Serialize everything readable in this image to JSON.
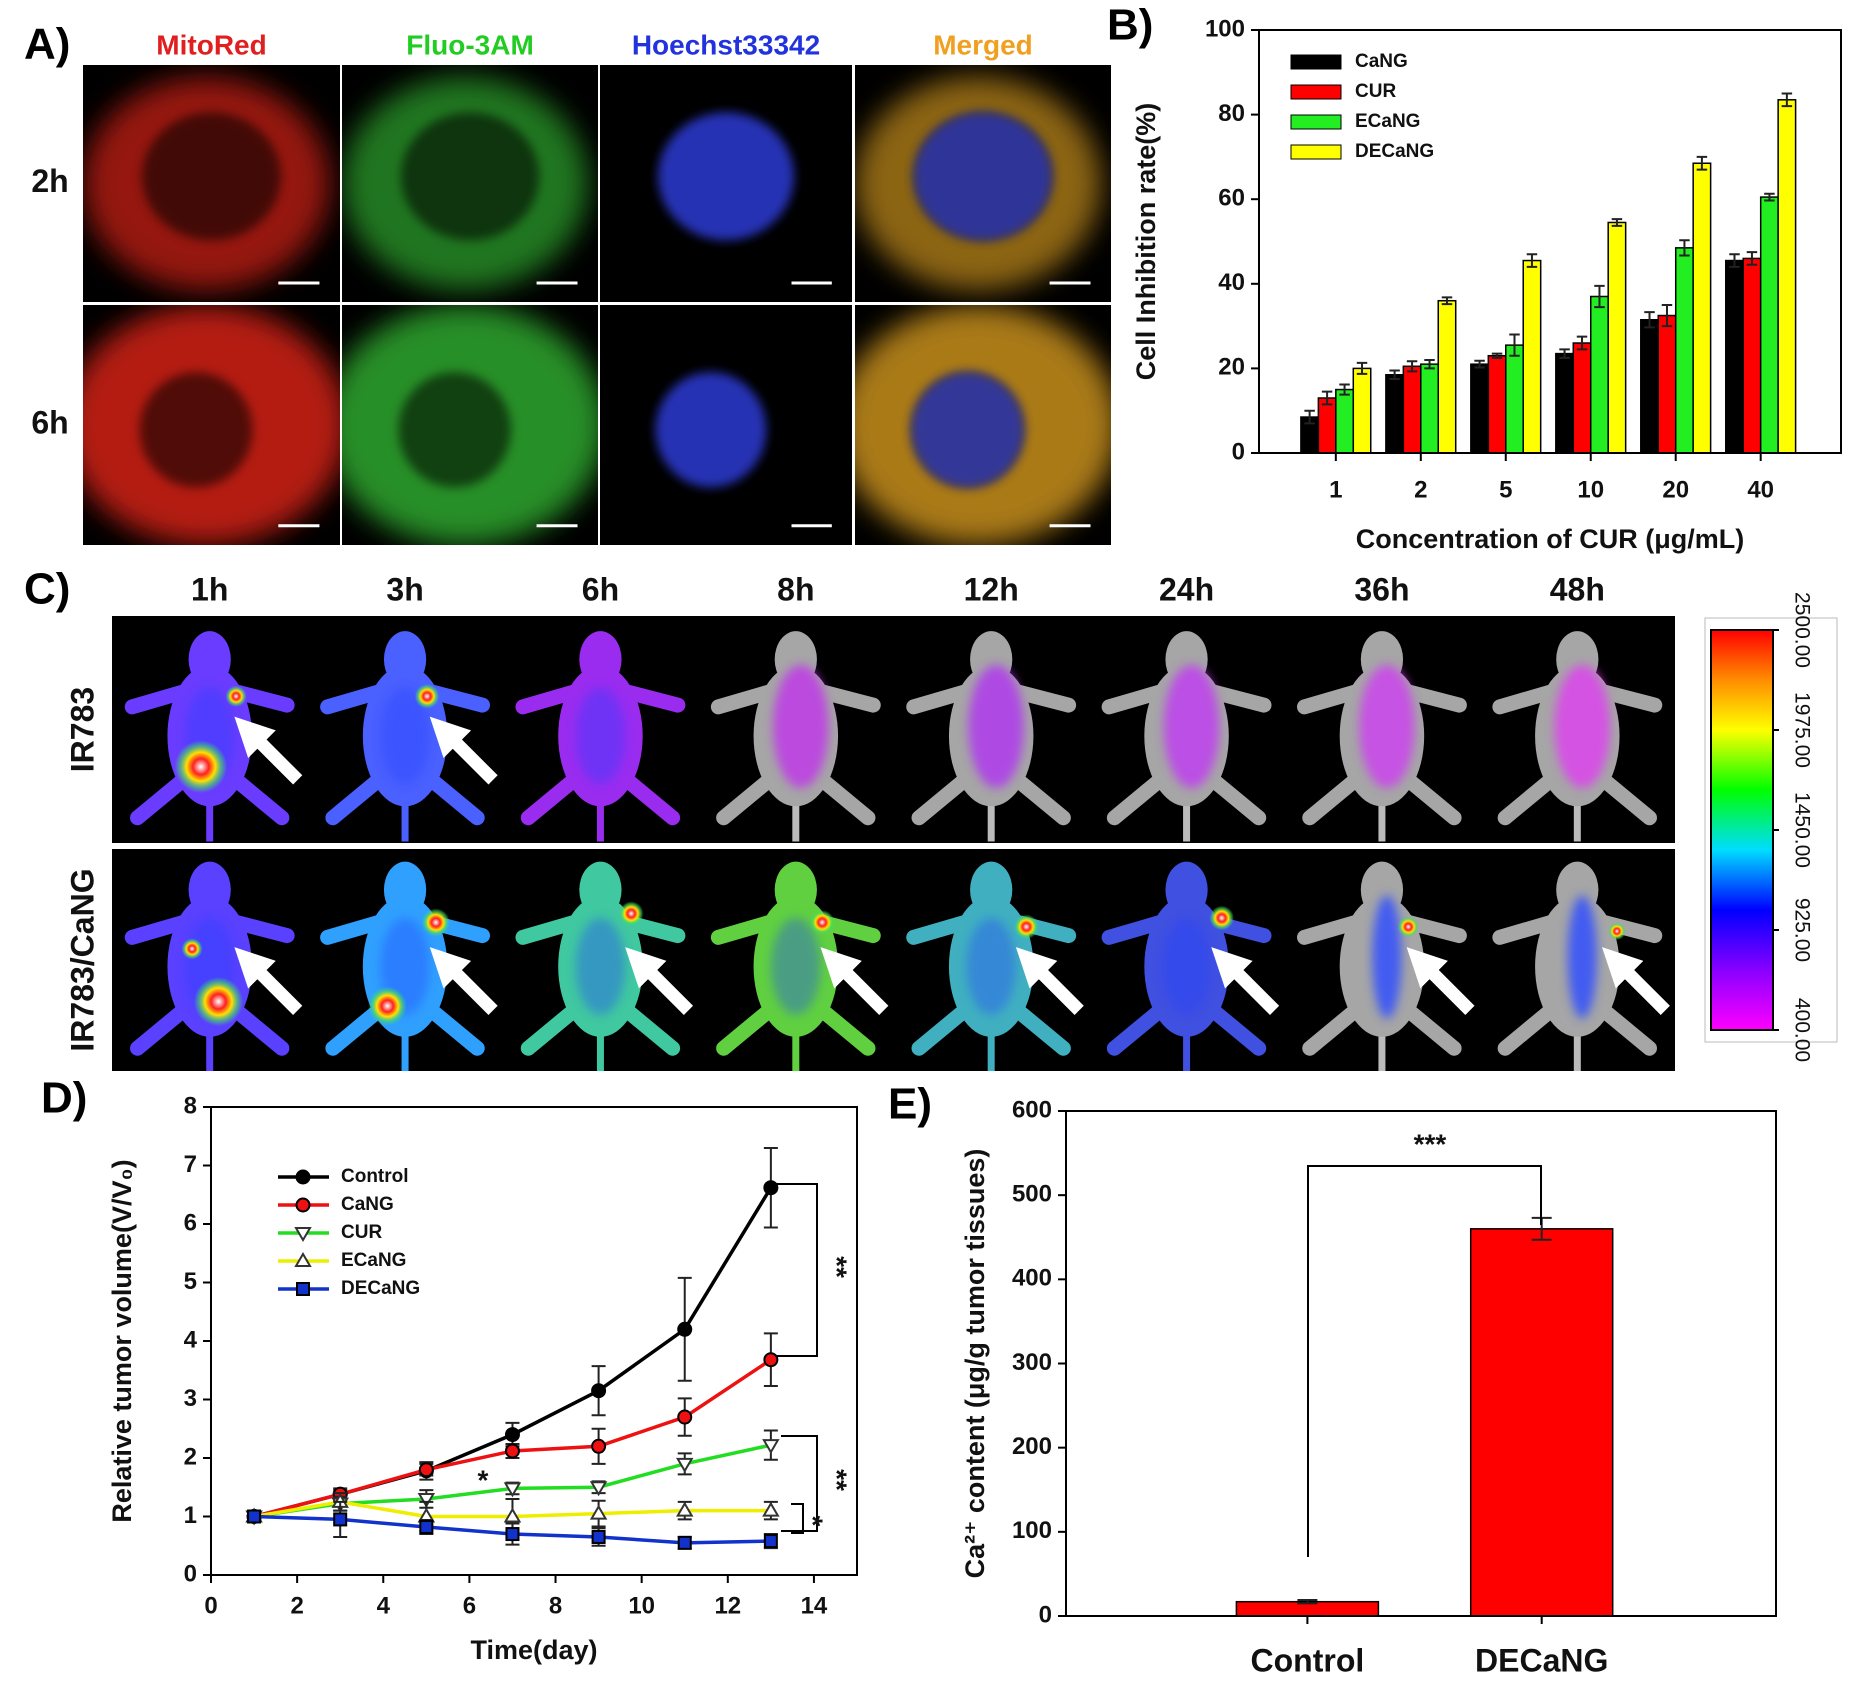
{
  "panel_labels": [
    "A)",
    "B)",
    "C)",
    "D)",
    "E)"
  ],
  "microscopy": {
    "channels": [
      "MitoRed",
      "Fluo-3AM",
      "Hoechst33342",
      "Merged"
    ],
    "rows": [
      "2h",
      "6h"
    ]
  },
  "imaging": {
    "times": [
      "1h",
      "3h",
      "6h",
      "8h",
      "12h",
      "24h",
      "36h",
      "48h"
    ],
    "rows": [
      "IR783",
      "IR783/CaNG"
    ],
    "colorbar": {
      "lim": [
        400,
        2500
      ],
      "ticks": [
        {
          "value": 2500,
          "label": "2500.00"
        },
        {
          "value": 1975,
          "label": "1975.00"
        },
        {
          "value": 1450,
          "label": "1450.00"
        },
        {
          "value": 925,
          "label": "925.00"
        },
        {
          "value": 400,
          "label": "400.00"
        }
      ]
    }
  },
  "chart_data": [
    {
      "type": "bar",
      "categories": [
        "1",
        "2",
        "5",
        "10",
        "20",
        "40"
      ],
      "series": [
        {
          "name": "CaNG",
          "color": "#000000",
          "values": [
            8.5,
            18.5,
            21,
            23.5,
            31.5,
            45.5
          ],
          "errors": [
            1.5,
            1,
            0.8,
            1,
            1.8,
            1.5
          ]
        },
        {
          "name": "CUR",
          "color": "#ff0000",
          "values": [
            13,
            20.5,
            23,
            26,
            32.5,
            46
          ],
          "errors": [
            1.5,
            1.2,
            0.5,
            1.5,
            2.5,
            1.5
          ]
        },
        {
          "name": "ECaNG",
          "color": "#22ee22",
          "values": [
            15,
            21,
            25.5,
            37,
            48.5,
            60.5
          ],
          "errors": [
            1.2,
            1,
            2.5,
            2.5,
            1.8,
            0.8
          ]
        },
        {
          "name": "DECaNG",
          "color": "#ffff00",
          "values": [
            20,
            36,
            45.5,
            54.5,
            68.5,
            83.5
          ],
          "errors": [
            1.3,
            0.8,
            1.5,
            0.8,
            1.5,
            1.5
          ]
        }
      ],
      "ylim": [
        0,
        100
      ],
      "yticks": [
        0,
        20,
        40,
        60,
        80,
        100
      ],
      "ylabel": "Cell Inhibition rate(%)",
      "xlabel": "Concentration of CUR (μg/mL)",
      "legend": "upper left"
    },
    {
      "type": "line",
      "x": [
        1,
        3,
        5,
        7,
        9,
        11,
        13
      ],
      "xlim": [
        0,
        15
      ],
      "xticks": [
        0,
        2,
        4,
        6,
        8,
        10,
        12,
        14
      ],
      "ylim": [
        0,
        8
      ],
      "yticks": [
        0,
        1,
        2,
        3,
        4,
        5,
        6,
        7,
        8
      ],
      "series": [
        {
          "name": "Control",
          "color": "#000000",
          "marker": "circle",
          "values": [
            1,
            1.38,
            1.78,
            2.4,
            3.15,
            4.2,
            6.62
          ],
          "errors": [
            0.05,
            0.1,
            0.15,
            0.2,
            0.42,
            0.88,
            0.68
          ]
        },
        {
          "name": "CaNG",
          "color": "#ee1111",
          "marker": "circle",
          "values": [
            1,
            1.38,
            1.8,
            2.12,
            2.2,
            2.7,
            3.68
          ],
          "errors": [
            0.05,
            0.08,
            0.1,
            0.12,
            0.3,
            0.32,
            0.45
          ]
        },
        {
          "name": "CUR",
          "color": "#22dd22",
          "marker": "triangle-down",
          "hollow": true,
          "values": [
            1,
            1.22,
            1.3,
            1.48,
            1.5,
            1.9,
            2.22
          ],
          "errors": [
            0.05,
            0.12,
            0.15,
            0.1,
            0.1,
            0.18,
            0.25
          ]
        },
        {
          "name": "ECaNG",
          "color": "#eeee00",
          "marker": "triangle-up",
          "hollow": true,
          "values": [
            1,
            1.25,
            1.0,
            1.0,
            1.05,
            1.1,
            1.1
          ],
          "errors": [
            0.05,
            0.15,
            0.25,
            0.3,
            0.22,
            0.15,
            0.15
          ]
        },
        {
          "name": "DECaNG",
          "color": "#1133cc",
          "marker": "square",
          "values": [
            1,
            0.95,
            0.82,
            0.7,
            0.65,
            0.55,
            0.58
          ],
          "errors": [
            0.05,
            0.3,
            0.12,
            0.18,
            0.15,
            0.1,
            0.12
          ]
        }
      ],
      "ylabel": "Relative tumor volume(V/V₀)",
      "xlabel": "Time(day)",
      "legend": "upper left",
      "annotations": [
        "*",
        "**",
        "**",
        "*"
      ]
    },
    {
      "type": "bar",
      "categories": [
        "Control",
        "DECaNG"
      ],
      "values": [
        17,
        460
      ],
      "errors": [
        2,
        13
      ],
      "color": "#ff0000",
      "ylim": [
        0,
        600
      ],
      "yticks": [
        0,
        100,
        200,
        300,
        400,
        500,
        600
      ],
      "ylabel": "Ca²⁺ content (μg/g tumor tissues)",
      "annotations": [
        "***"
      ]
    }
  ]
}
